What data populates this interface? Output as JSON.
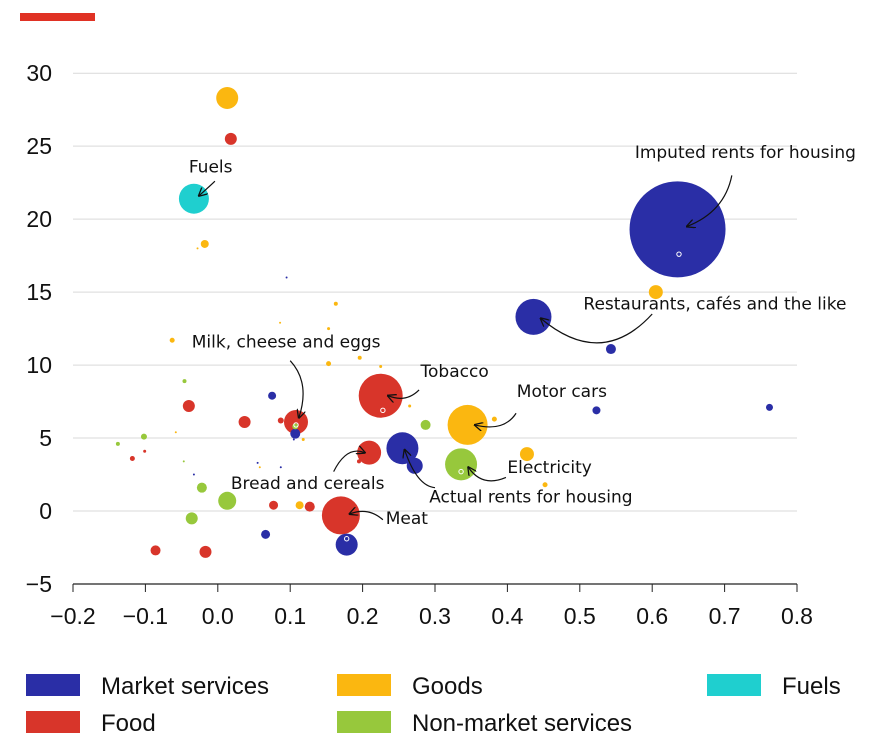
{
  "colors": {
    "accent_bar": "#e03224",
    "market_services": "#2a2ea6",
    "food": "#d8352a",
    "goods": "#fbb710",
    "non_market_services": "#97c83c",
    "fuels": "#1fcfcf",
    "grid": "#d9d9d9",
    "axis": "#222222"
  },
  "chart_data": {
    "type": "scatter",
    "xlim": [
      -0.2,
      0.8
    ],
    "ylim": [
      -5,
      32
    ],
    "x_ticks": [
      "−0.2",
      "−0.1",
      "0.0",
      "0.1",
      "0.2",
      "0.3",
      "0.4",
      "0.5",
      "0.6",
      "0.7",
      "0.8"
    ],
    "x_tick_values": [
      -0.2,
      -0.1,
      0.0,
      0.1,
      0.2,
      0.3,
      0.4,
      0.5,
      0.6,
      0.7,
      0.8
    ],
    "y_ticks": [
      "30",
      "25",
      "20",
      "15",
      "10",
      "5",
      "0",
      "−5"
    ],
    "y_tick_values": [
      30,
      25,
      20,
      15,
      10,
      5,
      0,
      -5
    ],
    "grid": "horizontal",
    "legend_position": "bottom",
    "series": [
      {
        "name": "Market services",
        "color_key": "market_services",
        "points": [
          {
            "x": 0.635,
            "y": 19.3,
            "size": 48
          },
          {
            "x": 0.436,
            "y": 13.3,
            "size": 18
          },
          {
            "x": 0.255,
            "y": 4.3,
            "size": 16
          },
          {
            "x": 0.272,
            "y": 3.1,
            "size": 8
          },
          {
            "x": 0.178,
            "y": -2.3,
            "size": 11
          },
          {
            "x": 0.543,
            "y": 11.1,
            "size": 5
          },
          {
            "x": 0.523,
            "y": 6.9,
            "size": 4
          },
          {
            "x": 0.762,
            "y": 7.1,
            "size": 3.5
          },
          {
            "x": 0.075,
            "y": 7.9,
            "size": 4
          },
          {
            "x": 0.107,
            "y": 5.3,
            "size": 5
          },
          {
            "x": 0.066,
            "y": -1.6,
            "size": 4.5
          },
          {
            "x": 0.095,
            "y": 16.0,
            "size": 1
          },
          {
            "x": 0.055,
            "y": 3.3,
            "size": 1
          },
          {
            "x": 0.087,
            "y": 3.0,
            "size": 1
          },
          {
            "x": -0.033,
            "y": 2.5,
            "size": 1
          },
          {
            "x": 0.105,
            "y": 4.9,
            "size": 1
          }
        ]
      },
      {
        "name": "Food",
        "color_key": "food",
        "points": [
          {
            "x": 0.225,
            "y": 7.9,
            "size": 22
          },
          {
            "x": 0.17,
            "y": -0.3,
            "size": 19
          },
          {
            "x": 0.108,
            "y": 6.1,
            "size": 12
          },
          {
            "x": 0.209,
            "y": 4.0,
            "size": 12
          },
          {
            "x": 0.018,
            "y": 25.5,
            "size": 6
          },
          {
            "x": -0.04,
            "y": 7.2,
            "size": 6
          },
          {
            "x": 0.037,
            "y": 6.1,
            "size": 6
          },
          {
            "x": -0.086,
            "y": -2.7,
            "size": 5
          },
          {
            "x": -0.017,
            "y": -2.8,
            "size": 6
          },
          {
            "x": 0.077,
            "y": 0.4,
            "size": 4.5
          },
          {
            "x": 0.127,
            "y": 0.3,
            "size": 5
          },
          {
            "x": 0.087,
            "y": 6.2,
            "size": 3
          },
          {
            "x": -0.118,
            "y": 3.6,
            "size": 2.5
          },
          {
            "x": -0.101,
            "y": 4.1,
            "size": 1.5
          },
          {
            "x": 0.195,
            "y": 3.4,
            "size": 2
          },
          {
            "x": 0.23,
            "y": 6.9,
            "size": 1.5
          }
        ]
      },
      {
        "name": "Goods",
        "color_key": "goods",
        "points": [
          {
            "x": 0.345,
            "y": 5.9,
            "size": 20
          },
          {
            "x": 0.013,
            "y": 28.3,
            "size": 11
          },
          {
            "x": 0.605,
            "y": 15.0,
            "size": 7
          },
          {
            "x": 0.427,
            "y": 3.9,
            "size": 7
          },
          {
            "x": -0.018,
            "y": 18.3,
            "size": 4
          },
          {
            "x": 0.113,
            "y": 0.4,
            "size": 4
          },
          {
            "x": -0.063,
            "y": 11.7,
            "size": 2.5
          },
          {
            "x": 0.153,
            "y": 10.1,
            "size": 2.5
          },
          {
            "x": 0.163,
            "y": 14.2,
            "size": 2
          },
          {
            "x": 0.153,
            "y": 12.5,
            "size": 1.5
          },
          {
            "x": 0.196,
            "y": 10.5,
            "size": 2
          },
          {
            "x": 0.382,
            "y": 6.3,
            "size": 2.5
          },
          {
            "x": 0.452,
            "y": 1.8,
            "size": 2.5
          },
          {
            "x": 0.225,
            "y": 9.9,
            "size": 1.5
          },
          {
            "x": -0.028,
            "y": 18.0,
            "size": 1
          },
          {
            "x": 0.086,
            "y": 12.9,
            "size": 1
          },
          {
            "x": 0.265,
            "y": 7.2,
            "size": 1.5
          },
          {
            "x": -0.058,
            "y": 5.4,
            "size": 1
          },
          {
            "x": 0.118,
            "y": 4.9,
            "size": 1.5
          },
          {
            "x": 0.058,
            "y": 3.0,
            "size": 1
          }
        ]
      },
      {
        "name": "Non-market services",
        "color_key": "non_market_services",
        "points": [
          {
            "x": 0.336,
            "y": 3.2,
            "size": 16
          },
          {
            "x": 0.013,
            "y": 0.7,
            "size": 9
          },
          {
            "x": -0.036,
            "y": -0.5,
            "size": 6
          },
          {
            "x": 0.287,
            "y": 5.9,
            "size": 5
          },
          {
            "x": -0.022,
            "y": 1.6,
            "size": 5
          },
          {
            "x": -0.102,
            "y": 5.1,
            "size": 3
          },
          {
            "x": -0.046,
            "y": 8.9,
            "size": 2
          },
          {
            "x": -0.138,
            "y": 4.6,
            "size": 2
          },
          {
            "x": 0.107,
            "y": 5.8,
            "size": 3
          },
          {
            "x": -0.047,
            "y": 3.4,
            "size": 1
          }
        ]
      },
      {
        "name": "Fuels",
        "color_key": "fuels",
        "points": [
          {
            "x": -0.033,
            "y": 21.4,
            "size": 15
          }
        ]
      }
    ],
    "annotations": [
      {
        "text": "Fuels",
        "tx": -0.04,
        "ty": 23.2,
        "anchor": "start",
        "px": -0.026,
        "py": 21.6,
        "sx": -0.004,
        "sy": 22.6,
        "cx": -0.008,
        "cy": 22.4
      },
      {
        "text": "Imputed rents for housing",
        "tx": 0.576,
        "ty": 24.2,
        "anchor": "start",
        "px": 0.648,
        "py": 19.5,
        "sx": 0.71,
        "sy": 23.0,
        "cx": 0.7,
        "cy": 20.5
      },
      {
        "text": "Restaurants, cafés and the like",
        "tx": 0.505,
        "ty": 13.8,
        "anchor": "start",
        "px": 0.446,
        "py": 13.2,
        "sx": 0.6,
        "sy": 13.5,
        "cx": 0.53,
        "cy": 9.7
      },
      {
        "text": "Milk, cheese and eggs",
        "tx": -0.036,
        "ty": 11.2,
        "anchor": "start",
        "px": 0.112,
        "py": 6.4,
        "sx": 0.1,
        "sy": 10.3,
        "cx": 0.128,
        "cy": 8.8
      },
      {
        "text": "Tobacco",
        "tx": 0.28,
        "ty": 9.2,
        "anchor": "start",
        "px": 0.235,
        "py": 7.9,
        "sx": 0.278,
        "sy": 8.3,
        "cx": 0.26,
        "cy": 7.4
      },
      {
        "text": "Motor cars",
        "tx": 0.413,
        "ty": 7.8,
        "anchor": "start",
        "px": 0.355,
        "py": 5.9,
        "sx": 0.412,
        "sy": 6.7,
        "cx": 0.395,
        "cy": 5.4
      },
      {
        "text": "Bread and cereals",
        "tx": 0.018,
        "ty": 1.5,
        "anchor": "start",
        "px": 0.203,
        "py": 4.0,
        "sx": 0.16,
        "sy": 2.7,
        "cx": 0.178,
        "cy": 4.5
      },
      {
        "text": "Electricity",
        "tx": 0.4,
        "ty": 2.6,
        "anchor": "start",
        "px": 0.346,
        "py": 3.0,
        "sx": 0.398,
        "sy": 2.3,
        "cx": 0.365,
        "cy": 1.6
      },
      {
        "text": "Actual rents for housing",
        "tx": 0.292,
        "ty": 0.6,
        "anchor": "start",
        "px": 0.258,
        "py": 4.2,
        "sx": 0.3,
        "sy": 1.6,
        "cx": 0.275,
        "cy": 1.7
      },
      {
        "text": "Meat",
        "tx": 0.232,
        "ty": -0.9,
        "anchor": "start",
        "px": 0.182,
        "py": -0.2,
        "sx": 0.228,
        "sy": -0.6,
        "cx": 0.208,
        "cy": 0.3
      }
    ]
  },
  "legend": [
    {
      "label": "Market services",
      "color_key": "market_services"
    },
    {
      "label": "Food",
      "color_key": "food"
    },
    {
      "label": "Goods",
      "color_key": "goods"
    },
    {
      "label": "Non-market services",
      "color_key": "non_market_services"
    },
    {
      "label": "Fuels",
      "color_key": "fuels"
    }
  ]
}
